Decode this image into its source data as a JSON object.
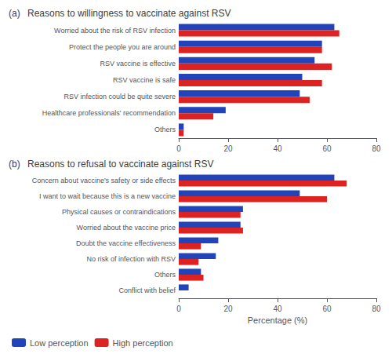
{
  "chart_data": [
    {
      "type": "bar",
      "orientation": "horizontal",
      "title": "(a)",
      "subtitle": "Reasons to willingness to vaccinate against RSV",
      "categories": [
        "Worried about the risk of RSV infection",
        "Protect the people you are around",
        "RSV vaccine is effective",
        "RSV vaccine is safe",
        "RSV infection could be quite severe",
        "Healthcare professionals' recommendation",
        "Others"
      ],
      "series": [
        {
          "name": "Low perception",
          "color": "#2244bb",
          "values": [
            63,
            58,
            55,
            50,
            49,
            19,
            2
          ]
        },
        {
          "name": "High perception",
          "color": "#dd2222",
          "values": [
            65,
            58,
            62,
            58,
            53,
            14,
            2
          ]
        }
      ],
      "xlim": [
        0,
        80
      ],
      "xticks": [
        0,
        20,
        40,
        60,
        80
      ],
      "grid": false
    },
    {
      "type": "bar",
      "orientation": "horizontal",
      "title": "(b)",
      "subtitle": "Reasons to refusal to vaccinate against RSV",
      "categories": [
        "Concern about vaccine's safety or side effects",
        "I want to wait because this is a new vaccine",
        "Physical causes or contraindications",
        "Worried about the vaccine price",
        "Doubt the vaccine effectiveness",
        "No risk of infection with RSV",
        "Others",
        "Conflict with belief"
      ],
      "series": [
        {
          "name": "Low perception",
          "color": "#2244bb",
          "values": [
            63,
            49,
            26,
            25,
            16,
            15,
            9,
            4
          ]
        },
        {
          "name": "High perception",
          "color": "#dd2222",
          "values": [
            68,
            60,
            25,
            26,
            9,
            8,
            10,
            0
          ]
        }
      ],
      "xlabel": "Percentage (%)",
      "xlim": [
        0,
        80
      ],
      "xticks": [
        0,
        20,
        40,
        60,
        80
      ],
      "grid": false,
      "legend": "lower left"
    }
  ]
}
